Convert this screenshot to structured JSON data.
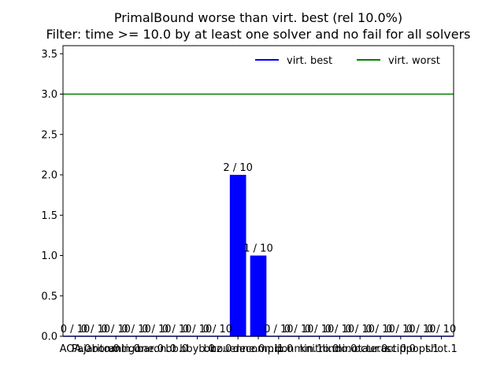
{
  "chart_data": {
    "type": "bar",
    "title": "PrimalBound worse than virt. best (rel 10.0%)",
    "subtitle": "Filter: time >= 10.0 by at least one solver and no fail for all solvers",
    "xlabel": "",
    "ylabel": "",
    "categories": [
      "AOA.0",
      "Pajarito.0",
      "bonmin.0",
      "antigone.0",
      "baron.0",
      "bb.0",
      "bbyb.0",
      "bbz.0",
      "couenne.0",
      "decomp.1",
      "mip.0",
      "bonmin.1",
      "knitro.0",
      "lindo.0",
      "minotaur.0",
      "octeract.0",
      "scip.0",
      "ipopt.1",
      "shot.1"
    ],
    "tick_labels_raw": "AOA.0Pajarito.0bonmin.0antigone.0baron.0bb.0bbyb.0bbz.0couenne.0decomp.1mip.0bonmin.1knitro.0lindo.0minotaur.0octeract.0scip.0ipopt.1shot.1",
    "series": [
      {
        "values": [
          0,
          0,
          0,
          0,
          0,
          0,
          0,
          0,
          2,
          1,
          0,
          0,
          0,
          0,
          0,
          0,
          0,
          0,
          0
        ],
        "color": "#0000ff"
      }
    ],
    "bar_labels": [
      "0 / 10",
      "0 / 10",
      "0 / 10",
      "0 / 10",
      "0 / 10",
      "0 / 10",
      "0 / 10",
      "0 / 10",
      "2 / 10",
      "1 / 10",
      "0 / 10",
      "0 / 10",
      "0 / 10",
      "0 / 10",
      "0 / 10",
      "0 / 10",
      "0 / 10",
      "0 / 10",
      "0 / 10"
    ],
    "reference_lines": [
      {
        "name": "virt. best",
        "value": 0,
        "color": "#0000ff"
      },
      {
        "name": "virt. worst",
        "value": 3,
        "color": "#008000"
      }
    ],
    "ylim": [
      0,
      3.6
    ],
    "yticks": [
      0.0,
      0.5,
      1.0,
      1.5,
      2.0,
      2.5,
      3.0,
      3.5
    ],
    "ytick_labels": [
      "0.0",
      "0.5",
      "1.0",
      "1.5",
      "2.0",
      "2.5",
      "3.0",
      "3.5"
    ],
    "grid": false,
    "legend_position": "top-right"
  }
}
